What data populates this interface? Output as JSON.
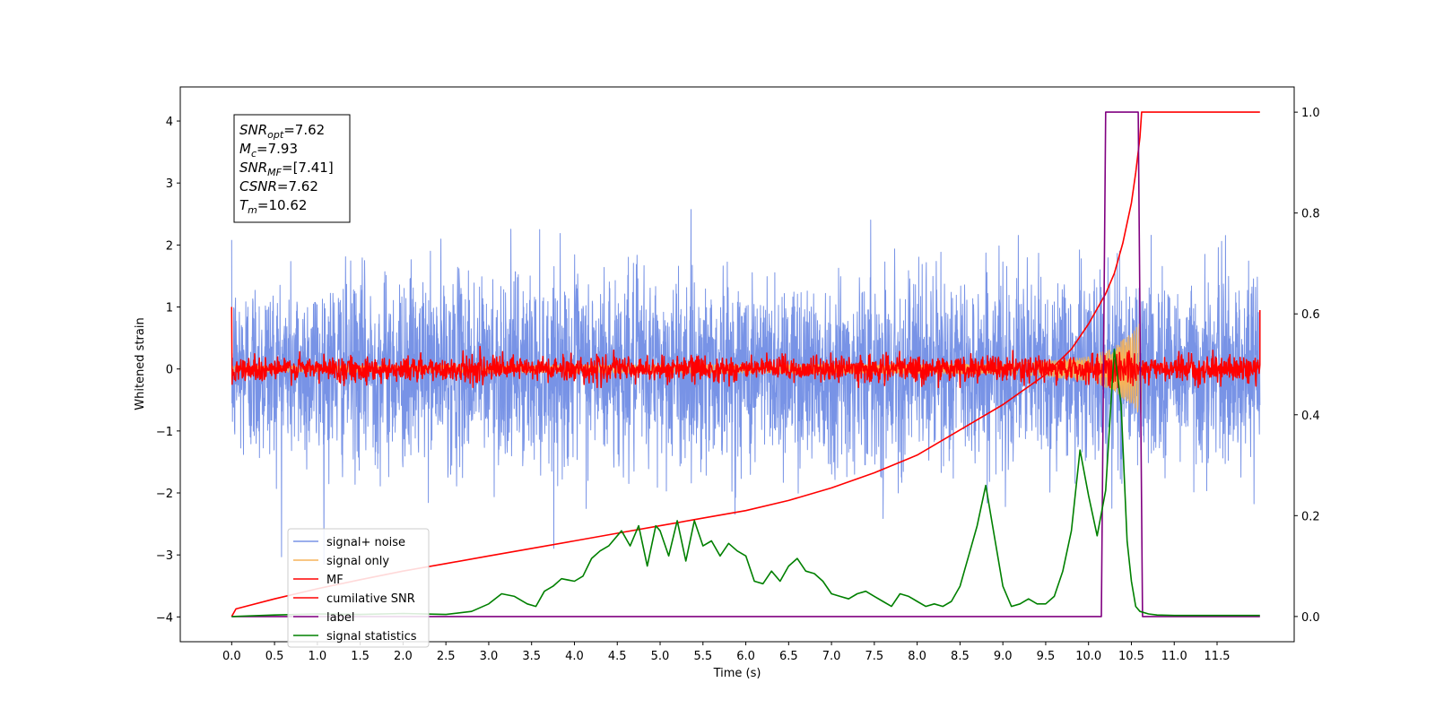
{
  "chart_data": {
    "type": "line",
    "xlabel": "Time (s)",
    "ylabel": "Whitened strain",
    "xlim": [
      -0.6,
      12.4
    ],
    "ylim": [
      -4.4,
      4.55
    ],
    "y2lim": [
      -0.05,
      1.05
    ],
    "x_ticks": [
      "0.0",
      "0.5",
      "1.0",
      "1.5",
      "2.0",
      "2.5",
      "3.0",
      "3.5",
      "4.0",
      "4.5",
      "5.0",
      "5.5",
      "6.0",
      "6.5",
      "7.0",
      "7.5",
      "8.0",
      "8.5",
      "9.0",
      "9.5",
      "10.0",
      "10.5",
      "11.0",
      "11.5"
    ],
    "y_ticks": [
      "4",
      "3",
      "2",
      "1",
      "0",
      "−1",
      "−2",
      "−3",
      "−4"
    ],
    "y_tick_values": [
      4,
      3,
      2,
      1,
      0,
      -1,
      -2,
      -3,
      -4
    ],
    "y2_ticks": [
      "1.0",
      "0.8",
      "0.6",
      "0.4",
      "0.2",
      "0.0"
    ],
    "y2_tick_values": [
      1.0,
      0.8,
      0.6,
      0.4,
      0.2,
      0.0
    ],
    "grid": false,
    "legend_position": "lower-left",
    "annotation": {
      "lines": [
        {
          "main": "SNR",
          "sub": "opt",
          "rest": "=7.62"
        },
        {
          "main": "M",
          "sub": "c",
          "rest": "=7.93"
        },
        {
          "main": "SNR",
          "sub": "MF",
          "rest": "=[7.41]"
        },
        {
          "main": "CSNR",
          "sub": "",
          "rest": "=7.62"
        },
        {
          "main": "T",
          "sub": "m",
          "rest": "=10.62"
        }
      ]
    },
    "series": [
      {
        "name": "signal+ noise",
        "color": "#7893e6",
        "axis": "left",
        "kind": "noise",
        "x_range": [
          0,
          12
        ],
        "amplitude_std": 0.75,
        "peak_range": [
          -3.8,
          4.15
        ]
      },
      {
        "name": "signal only",
        "color": "#f5b35a",
        "axis": "left",
        "kind": "chirp",
        "x_range": [
          0,
          10.62
        ],
        "envelope": [
          [
            9.0,
            0.08
          ],
          [
            9.5,
            0.12
          ],
          [
            10.0,
            0.2
          ],
          [
            10.3,
            0.35
          ],
          [
            10.55,
            0.65
          ],
          [
            10.62,
            0.8
          ]
        ]
      },
      {
        "name": "MF",
        "color": "#ff0000",
        "axis": "left",
        "kind": "mf",
        "x_range": [
          0,
          12
        ],
        "amplitude_std": 0.1,
        "peak_range": [
          -0.3,
          0.5
        ],
        "edge_values": [
          1.0,
          0.95
        ]
      },
      {
        "name": "cumilative SNR",
        "color": "#ff0000",
        "axis": "right",
        "x": [
          0,
          0.05,
          0.5,
          1.0,
          1.5,
          2.0,
          2.5,
          3.0,
          3.5,
          4.0,
          4.5,
          5.0,
          5.5,
          6.0,
          6.5,
          7.0,
          7.5,
          8.0,
          8.5,
          9.0,
          9.5,
          9.8,
          10.0,
          10.2,
          10.3,
          10.4,
          10.5,
          10.55,
          10.6,
          10.62,
          11.0,
          12.0
        ],
        "y": [
          0.0,
          0.015,
          0.035,
          0.055,
          0.073,
          0.09,
          0.105,
          0.12,
          0.135,
          0.15,
          0.165,
          0.18,
          0.195,
          0.21,
          0.23,
          0.255,
          0.285,
          0.32,
          0.37,
          0.42,
          0.48,
          0.53,
          0.58,
          0.64,
          0.68,
          0.74,
          0.82,
          0.88,
          0.95,
          1.0,
          1.0,
          1.0
        ]
      },
      {
        "name": "label",
        "color": "#800080",
        "axis": "right",
        "x": [
          0,
          10.15,
          10.2,
          10.58,
          10.63,
          12.0
        ],
        "y": [
          0,
          0,
          1,
          1,
          0,
          0
        ]
      },
      {
        "name": "signal statistics",
        "color": "#008000",
        "axis": "right",
        "x": [
          0,
          0.5,
          1.0,
          1.5,
          2.0,
          2.5,
          2.8,
          3.0,
          3.15,
          3.3,
          3.45,
          3.55,
          3.65,
          3.75,
          3.85,
          4.0,
          4.1,
          4.2,
          4.3,
          4.4,
          4.55,
          4.65,
          4.75,
          4.85,
          4.95,
          5.0,
          5.1,
          5.2,
          5.3,
          5.4,
          5.5,
          5.6,
          5.7,
          5.8,
          5.9,
          6.0,
          6.1,
          6.2,
          6.3,
          6.4,
          6.5,
          6.6,
          6.7,
          6.8,
          6.9,
          7.0,
          7.1,
          7.2,
          7.3,
          7.4,
          7.5,
          7.6,
          7.7,
          7.8,
          7.9,
          8.0,
          8.1,
          8.2,
          8.3,
          8.4,
          8.5,
          8.6,
          8.7,
          8.8,
          8.9,
          9.0,
          9.1,
          9.2,
          9.3,
          9.4,
          9.5,
          9.6,
          9.7,
          9.8,
          9.9,
          10.0,
          10.1,
          10.2,
          10.3,
          10.38,
          10.45,
          10.5,
          10.55,
          10.6,
          10.7,
          10.8,
          11.0,
          11.5,
          12.0
        ],
        "y": [
          0.0,
          0.003,
          0.005,
          0.004,
          0.006,
          0.004,
          0.01,
          0.025,
          0.045,
          0.04,
          0.025,
          0.02,
          0.05,
          0.06,
          0.075,
          0.07,
          0.08,
          0.115,
          0.13,
          0.14,
          0.17,
          0.14,
          0.18,
          0.1,
          0.18,
          0.17,
          0.12,
          0.19,
          0.11,
          0.19,
          0.14,
          0.15,
          0.12,
          0.145,
          0.13,
          0.12,
          0.07,
          0.065,
          0.09,
          0.07,
          0.1,
          0.115,
          0.09,
          0.085,
          0.07,
          0.045,
          0.04,
          0.035,
          0.045,
          0.05,
          0.04,
          0.03,
          0.02,
          0.045,
          0.04,
          0.03,
          0.02,
          0.025,
          0.02,
          0.03,
          0.06,
          0.12,
          0.18,
          0.26,
          0.16,
          0.06,
          0.02,
          0.025,
          0.035,
          0.025,
          0.025,
          0.04,
          0.09,
          0.17,
          0.33,
          0.24,
          0.16,
          0.25,
          0.53,
          0.42,
          0.15,
          0.07,
          0.02,
          0.01,
          0.005,
          0.003,
          0.002,
          0.002,
          0.002
        ]
      }
    ]
  }
}
